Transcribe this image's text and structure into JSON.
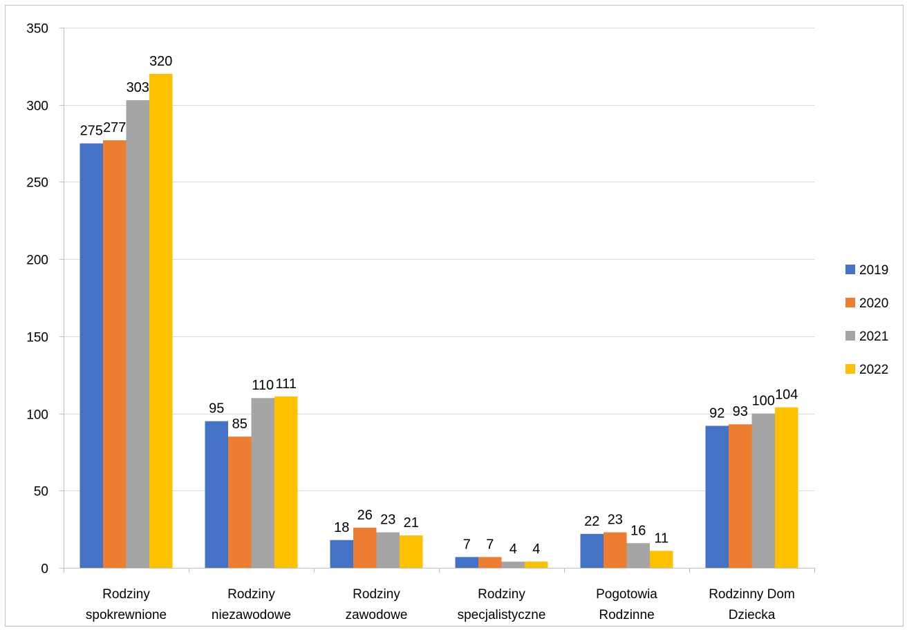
{
  "chart_data": {
    "type": "bar",
    "title": "",
    "xlabel": "",
    "ylabel": "",
    "categories": [
      [
        "Rodziny",
        "spokrewnione"
      ],
      [
        "Rodziny",
        "niezawodowe"
      ],
      [
        "Rodziny",
        "zawodowe"
      ],
      [
        "Rodziny",
        "specjalistyczne"
      ],
      [
        "Pogotowia",
        "Rodzinne"
      ],
      [
        "Rodzinny Dom",
        "Dziecka"
      ]
    ],
    "series": [
      {
        "name": "2019",
        "color": "#4472c4",
        "values": [
          275,
          95,
          18,
          7,
          22,
          92
        ]
      },
      {
        "name": "2020",
        "color": "#ed7d31",
        "values": [
          277,
          85,
          26,
          7,
          23,
          93
        ]
      },
      {
        "name": "2021",
        "color": "#a5a5a5",
        "values": [
          303,
          110,
          23,
          4,
          16,
          100
        ]
      },
      {
        "name": "2022",
        "color": "#ffc000",
        "values": [
          320,
          111,
          21,
          4,
          11,
          104
        ]
      }
    ],
    "ylim": [
      0,
      350
    ],
    "yticks": [
      0,
      50,
      100,
      150,
      200,
      250,
      300,
      350
    ],
    "grid": true,
    "legend": "right",
    "data_labels": true
  }
}
